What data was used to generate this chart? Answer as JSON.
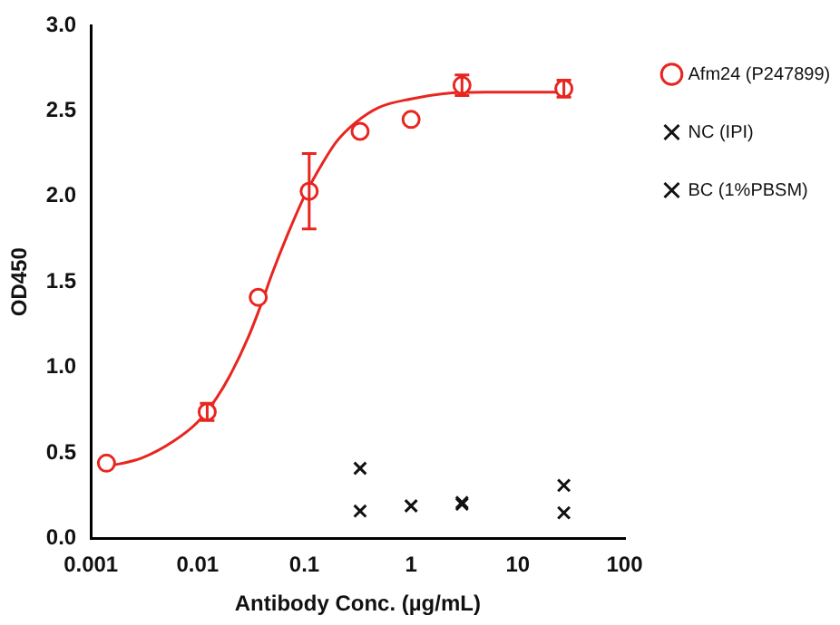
{
  "chart_data": {
    "type": "scatter",
    "xlabel": "Antibody Conc. (µg/mL)",
    "ylabel": "OD450",
    "log": "x",
    "grid": false,
    "legend": "right",
    "xlim": [
      0.001,
      100
    ],
    "xticks": [
      0.001,
      0.01,
      0.1,
      1,
      10,
      100
    ],
    "ylim": [
      0,
      3
    ],
    "yticks": [
      {
        "value": 0,
        "label": "0.0"
      },
      {
        "value": 0.5,
        "label": "0.5"
      },
      {
        "value": 1,
        "label": "1.0"
      },
      {
        "value": 1.5,
        "label": "1.5"
      },
      {
        "value": 2,
        "label": "2.0"
      },
      {
        "value": 2.5,
        "label": "2.5"
      },
      {
        "value": 3,
        "label": "3.0"
      }
    ],
    "series": [
      {
        "name": "Afm24 (P247899)",
        "color": "#e8251f",
        "marker": "circle",
        "x": [
          0.0014,
          0.0123,
          0.037,
          0.111,
          0.333,
          1,
          3,
          27
        ],
        "values": [
          0.44,
          0.74,
          1.41,
          2.03,
          2.38,
          2.45,
          2.65,
          2.63
        ],
        "errors": [
          null,
          0.05,
          null,
          [
            1.81,
            2.25
          ],
          null,
          null,
          0.06,
          0.05
        ]
      },
      {
        "type": "line",
        "color": "#e8251f",
        "marker": "none",
        "x": [
          0.0014,
          0.003,
          0.006,
          0.01,
          0.015,
          0.02,
          0.03,
          0.04,
          0.05,
          0.07,
          0.1,
          0.15,
          0.2,
          0.3,
          0.5,
          1,
          2,
          5,
          27
        ],
        "values": [
          0.42,
          0.47,
          0.57,
          0.68,
          0.82,
          0.95,
          1.18,
          1.38,
          1.55,
          1.78,
          2.0,
          2.2,
          2.32,
          2.43,
          2.52,
          2.57,
          2.6,
          2.61,
          2.61
        ]
      },
      {
        "name": "NC (IPI)",
        "color": "#111111",
        "marker": "cross",
        "x": [
          0.333,
          1,
          3,
          27
        ],
        "values": [
          0.16,
          0.19,
          0.2,
          0.31
        ]
      },
      {
        "name": "BC (1%PBSM)",
        "color": "#111111",
        "marker": "cross",
        "x": [
          0.333,
          1,
          3,
          27
        ],
        "values": [
          0.41,
          null,
          0.21,
          0.15
        ]
      }
    ]
  }
}
